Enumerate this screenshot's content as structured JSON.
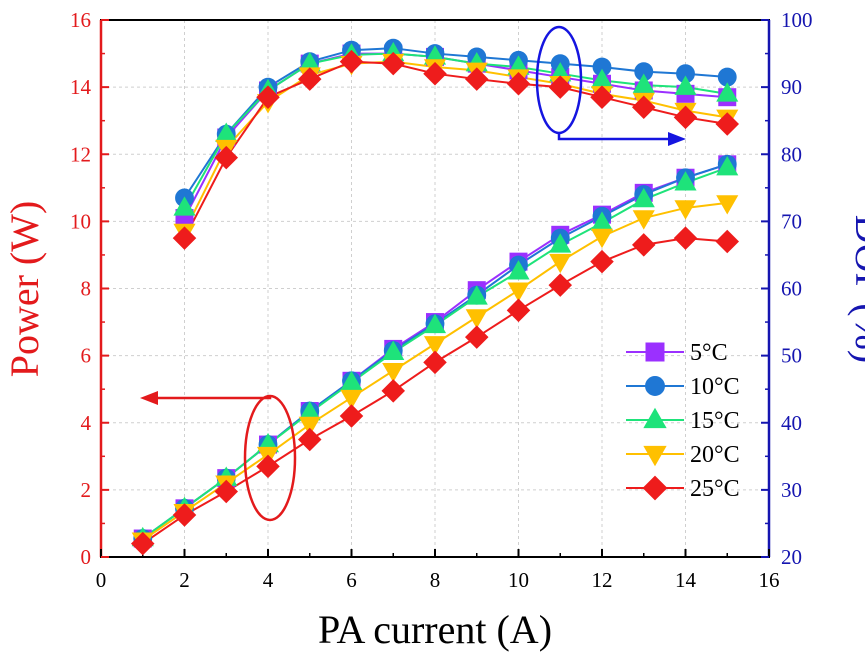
{
  "chart_data": {
    "type": "line",
    "xlabel": "PA current (A)",
    "ylabel_left": "Power (W)",
    "ylabel_right": "DOP (%)",
    "xlim": [
      0,
      16
    ],
    "ylim_left": [
      0,
      16
    ],
    "ylim_right": [
      20,
      100
    ],
    "xticks": [
      "0",
      "2",
      "4",
      "6",
      "8",
      "10",
      "12",
      "14",
      "16"
    ],
    "yticks_left": [
      "0",
      "2",
      "4",
      "6",
      "8",
      "10",
      "12",
      "14",
      "16"
    ],
    "yticks_right": [
      "20",
      "30",
      "40",
      "50",
      "60",
      "70",
      "80",
      "90",
      "100"
    ],
    "legend_position": "lower-right",
    "grid": true,
    "colors": {
      "left_axis": "#e31a1c",
      "right_axis": "#1515b0"
    },
    "series": [
      {
        "name": "5°C",
        "marker": "square",
        "color": "#9b30ff",
        "power_x": [
          1,
          2,
          3,
          4,
          5,
          6,
          7,
          8,
          9,
          10,
          11,
          12,
          13,
          14,
          15
        ],
        "power": [
          0.55,
          1.45,
          2.35,
          3.35,
          4.35,
          5.25,
          6.2,
          7.0,
          7.95,
          8.8,
          9.6,
          10.2,
          10.85,
          11.3,
          11.7
        ],
        "dop_x": [
          2,
          3,
          4,
          5,
          6,
          7,
          8,
          9,
          10,
          11,
          12,
          13,
          14,
          15
        ],
        "dop": [
          70.5,
          82.5,
          89.5,
          93.5,
          95.0,
          95.0,
          94.5,
          93.5,
          92.5,
          91.5,
          90.5,
          89.5,
          89.0,
          88.5
        ]
      },
      {
        "name": "10°C",
        "marker": "circle",
        "color": "#1f77d4",
        "power_x": [
          1,
          2,
          3,
          4,
          5,
          6,
          7,
          8,
          9,
          10,
          11,
          12,
          13,
          14,
          15
        ],
        "power": [
          0.55,
          1.45,
          2.35,
          3.35,
          4.35,
          5.25,
          6.15,
          6.95,
          7.8,
          8.7,
          9.5,
          10.15,
          10.8,
          11.3,
          11.7
        ],
        "dop_x": [
          2,
          3,
          4,
          5,
          6,
          7,
          8,
          9,
          10,
          11,
          12,
          13,
          14,
          15
        ],
        "dop": [
          73.5,
          83.0,
          90.0,
          93.8,
          95.5,
          95.8,
          95.0,
          94.5,
          94.0,
          93.5,
          93.0,
          92.3,
          92.0,
          91.5
        ]
      },
      {
        "name": "15°C",
        "marker": "triangle-up",
        "color": "#1ee37a",
        "power_x": [
          1,
          2,
          3,
          4,
          5,
          6,
          7,
          8,
          9,
          10,
          11,
          12,
          13,
          14,
          15
        ],
        "power": [
          0.55,
          1.45,
          2.35,
          3.35,
          4.3,
          5.2,
          6.1,
          6.9,
          7.75,
          8.5,
          9.3,
          9.95,
          10.65,
          11.15,
          11.6
        ],
        "dop_x": [
          2,
          3,
          4,
          5,
          6,
          7,
          8,
          9,
          10,
          11,
          12,
          13,
          14,
          15
        ],
        "dop": [
          72.0,
          83.0,
          89.5,
          93.5,
          94.8,
          95.0,
          94.5,
          93.5,
          93.0,
          92.0,
          91.0,
          90.3,
          90.0,
          89.0
        ]
      },
      {
        "name": "20°C",
        "marker": "triangle-down",
        "color": "#ffc000",
        "power_x": [
          1,
          2,
          3,
          4,
          5,
          6,
          7,
          8,
          9,
          10,
          11,
          12,
          13,
          14,
          15
        ],
        "power": [
          0.5,
          1.35,
          2.2,
          3.05,
          3.95,
          4.75,
          5.55,
          6.35,
          7.15,
          7.95,
          8.8,
          9.55,
          10.1,
          10.4,
          10.55
        ],
        "dop_x": [
          2,
          3,
          4,
          5,
          6,
          7,
          8,
          9,
          10,
          11,
          12,
          13,
          14,
          15
        ],
        "dop": [
          68.5,
          81.0,
          87.8,
          91.8,
          93.5,
          93.8,
          93.0,
          92.5,
          91.5,
          90.5,
          89.0,
          88.0,
          86.5,
          85.5
        ]
      },
      {
        "name": "25°C",
        "marker": "diamond",
        "color": "#ee1c1c",
        "power_x": [
          1,
          2,
          3,
          4,
          5,
          6,
          7,
          8,
          9,
          10,
          11,
          12,
          13,
          14,
          15
        ],
        "power": [
          0.4,
          1.25,
          1.95,
          2.7,
          3.5,
          4.2,
          4.95,
          5.8,
          6.55,
          7.35,
          8.1,
          8.8,
          9.3,
          9.5,
          9.4
        ],
        "dop_x": [
          2,
          3,
          4,
          5,
          6,
          7,
          8,
          9,
          10,
          11,
          12,
          13,
          14,
          15
        ],
        "dop": [
          67.5,
          79.5,
          88.5,
          91.2,
          93.8,
          93.5,
          92.0,
          91.2,
          90.5,
          90.0,
          88.5,
          87.0,
          85.5,
          84.5
        ]
      }
    ]
  }
}
